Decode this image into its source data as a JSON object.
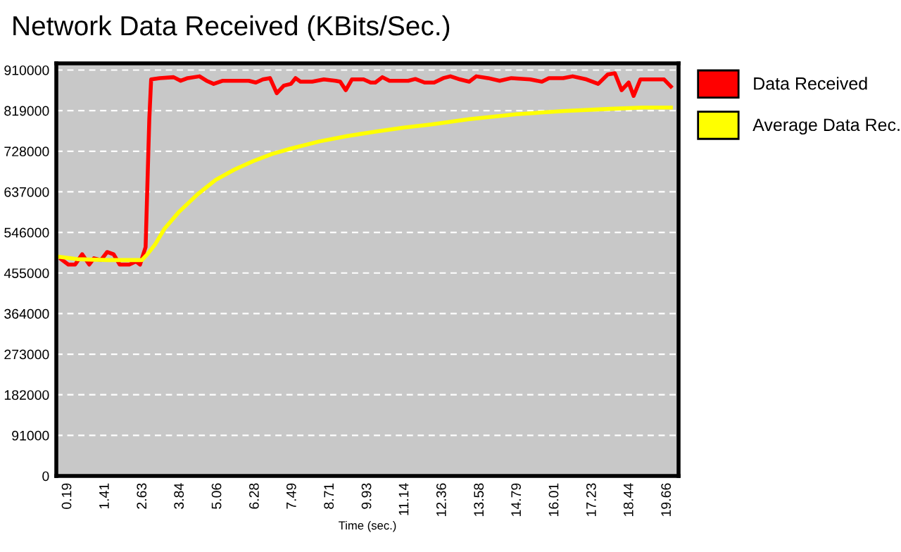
{
  "chart_data": {
    "type": "line",
    "title": "Network Data Received (KBits/Sec.)",
    "xlabel": "Time (sec.)",
    "legend": "top right",
    "grid": "y",
    "line_style": "solid",
    "marker": "none",
    "xlim": [
      -0.18,
      20.03
    ],
    "xticks": [
      0.19,
      1.41,
      2.63,
      3.84,
      5.06,
      6.28,
      7.49,
      8.71,
      9.93,
      11.14,
      12.36,
      13.58,
      14.79,
      16.01,
      17.23,
      18.44,
      19.66
    ],
    "ylim": [
      0,
      925000
    ],
    "yticks": [
      0,
      91000,
      182000,
      273000,
      364000,
      455000,
      546000,
      637000,
      728000,
      819000,
      910000
    ],
    "series": [
      {
        "name": "Data Received",
        "color": "#ff0000",
        "x": [
          -0.02,
          0.21,
          0.43,
          0.66,
          0.89,
          1.04,
          1.27,
          1.47,
          1.68,
          1.88,
          2.19,
          2.41,
          2.54,
          2.72,
          2.84,
          2.9,
          3.18,
          3.63,
          3.86,
          4.09,
          4.47,
          4.7,
          4.93,
          5.23,
          5.69,
          6.07,
          6.3,
          6.53,
          6.76,
          6.98,
          7.21,
          7.44,
          7.59,
          7.75,
          8.13,
          8.51,
          8.89,
          9.04,
          9.22,
          9.42,
          9.8,
          10.03,
          10.18,
          10.41,
          10.64,
          10.95,
          11.25,
          11.48,
          11.78,
          12.09,
          12.39,
          12.62,
          12.93,
          13.23,
          13.46,
          13.84,
          14.22,
          14.6,
          15.21,
          15.59,
          15.82,
          16.28,
          16.59,
          17.04,
          17.42,
          17.73,
          17.96,
          18.18,
          18.41,
          18.57,
          18.79,
          19.17,
          19.56,
          19.78
        ],
        "values": [
          486000,
          474000,
          474000,
          497000,
          474000,
          488000,
          484000,
          502000,
          497000,
          474000,
          474000,
          481000,
          474000,
          513000,
          800000,
          889000,
          892000,
          894000,
          886000,
          892000,
          896000,
          886000,
          879000,
          886000,
          886000,
          886000,
          882000,
          889000,
          892000,
          858000,
          875000,
          879000,
          892000,
          884000,
          884000,
          889000,
          886000,
          884000,
          865000,
          889000,
          889000,
          882000,
          882000,
          894000,
          886000,
          886000,
          886000,
          890000,
          882000,
          882000,
          892000,
          896000,
          889000,
          884000,
          896000,
          892000,
          886000,
          892000,
          889000,
          884000,
          892000,
          892000,
          896000,
          889000,
          879000,
          900000,
          903000,
          865000,
          882000,
          852000,
          889000,
          889000,
          889000,
          873000
        ]
      },
      {
        "name": "Average Data Rec.",
        "color": "#ffff00",
        "x": [
          -0.17,
          0.5,
          1.5,
          2.6,
          2.75,
          3.02,
          3.33,
          3.79,
          4.4,
          5.0,
          5.61,
          6.22,
          6.83,
          7.44,
          8.36,
          9.27,
          10.18,
          11.1,
          12.0,
          13.23,
          14.76,
          16.28,
          17.8,
          18.87,
          19.78
        ],
        "values": [
          492000,
          486000,
          484000,
          484000,
          495000,
          518000,
          554000,
          591000,
          631000,
          664000,
          687000,
          706000,
          722000,
          734000,
          750000,
          762000,
          772000,
          781000,
          788000,
          800000,
          811000,
          818000,
          823000,
          826000,
          826000
        ]
      }
    ]
  }
}
